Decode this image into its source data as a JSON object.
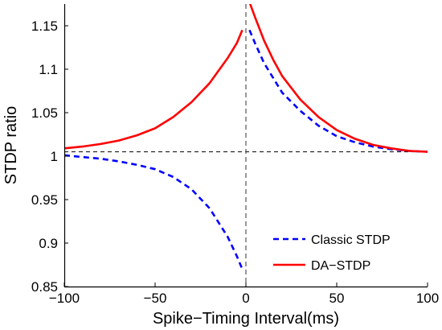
{
  "chart_data": {
    "type": "line",
    "title": "",
    "xlabel": "Spike−Timing Interval(ms)",
    "ylabel": "STDP ratio",
    "xlim": [
      -100,
      100
    ],
    "ylim": [
      0.85,
      1.175
    ],
    "xticks": [
      -100,
      -50,
      0,
      50,
      100
    ],
    "xtick_labels": [
      "−100",
      "−50",
      "0",
      "50",
      "100"
    ],
    "yticks": [
      0.85,
      0.9,
      0.95,
      1.0,
      1.05,
      1.1,
      1.15
    ],
    "ytick_labels": [
      "0.85",
      "0.9",
      "0.95",
      "1",
      "1.05",
      "1.1",
      "1.15"
    ],
    "grid": false,
    "legend_position": "bottom-right",
    "reference_lines": {
      "horizontal_y": 1.005,
      "vertical_x": 0
    },
    "series": [
      {
        "name": "Classic STDP",
        "color": "#0000ff",
        "style": "dashed",
        "segments": [
          {
            "x": [
              -100,
              -90,
              -80,
              -70,
              -60,
              -50,
              -40,
              -30,
              -20,
              -10,
              -5,
              -2
            ],
            "y": [
              1.001,
              0.999,
              0.997,
              0.994,
              0.99,
              0.985,
              0.976,
              0.962,
              0.94,
              0.907,
              0.885,
              0.87
            ]
          },
          {
            "x": [
              2,
              5,
              10,
              15,
              20,
              30,
              40,
              50,
              60,
              70,
              80,
              90,
              100
            ],
            "y": [
              1.145,
              1.13,
              1.107,
              1.09,
              1.073,
              1.052,
              1.035,
              1.023,
              1.016,
              1.011,
              1.008,
              1.006,
              1.005
            ]
          }
        ]
      },
      {
        "name": "DA−STDP",
        "color": "#ff0000",
        "style": "solid",
        "segments": [
          {
            "x": [
              -100,
              -90,
              -80,
              -70,
              -60,
              -50,
              -40,
              -30,
              -20,
              -10,
              -5,
              -2
            ],
            "y": [
              1.009,
              1.011,
              1.014,
              1.018,
              1.024,
              1.032,
              1.045,
              1.062,
              1.084,
              1.113,
              1.13,
              1.145
            ]
          },
          {
            "x": [
              2,
              5,
              10,
              15,
              20,
              30,
              40,
              50,
              60,
              70,
              80,
              90,
              100
            ],
            "y": [
              1.177,
              1.16,
              1.133,
              1.111,
              1.092,
              1.065,
              1.045,
              1.03,
              1.02,
              1.013,
              1.009,
              1.006,
              1.005
            ]
          }
        ]
      }
    ]
  }
}
